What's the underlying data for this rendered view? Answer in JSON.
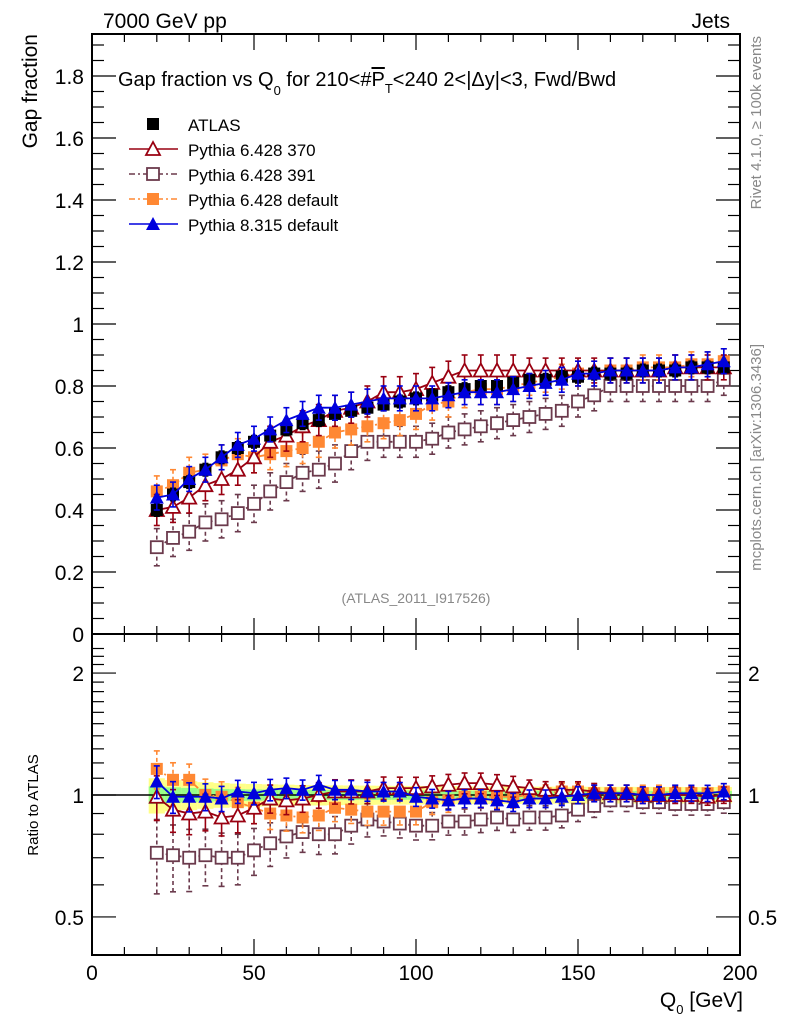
{
  "chart_data": [
    {
      "type": "scatter",
      "panel": "main",
      "title": "Gap fraction vs Q_0 for 210<#P_T<240  2<|Δy|<3, Fwd/Bwd",
      "title_parts": {
        "a": "Gap fraction vs Q",
        "a_sub": "0",
        "b": " for 210<#",
        "b_over": "P",
        "b_sub": "T",
        "c": "<240  2<|Δy|<3, Fwd/Bwd"
      },
      "top_left_label": "7000 GeV pp",
      "top_right_label": "Jets",
      "ylabel": "Gap fraction",
      "xlim": [
        0,
        200
      ],
      "ylim": [
        0,
        1.93
      ],
      "yticks": [
        0,
        0.2,
        0.4,
        0.6,
        0.8,
        1,
        1.2,
        1.4,
        1.6,
        1.8
      ],
      "ytick_labels": [
        "0",
        "0.2",
        "0.4",
        "0.6",
        "0.8",
        "1",
        "1.2",
        "1.4",
        "1.6",
        "1.8"
      ],
      "analysis_label": "(ATLAS_2011_I917526)",
      "legend_position": "top-left",
      "x": [
        20,
        25,
        30,
        35,
        40,
        45,
        50,
        55,
        60,
        65,
        70,
        75,
        80,
        85,
        90,
        95,
        100,
        105,
        110,
        115,
        120,
        125,
        130,
        135,
        140,
        145,
        150,
        155,
        160,
        165,
        170,
        175,
        180,
        185,
        190,
        195
      ],
      "series": [
        {
          "name": "ATLAS",
          "color": "#000000",
          "marker": "filled-square",
          "line": "none",
          "values": [
            0.4,
            0.45,
            0.49,
            0.53,
            0.57,
            0.6,
            0.62,
            0.64,
            0.66,
            0.68,
            0.69,
            0.71,
            0.72,
            0.73,
            0.74,
            0.75,
            0.76,
            0.77,
            0.78,
            0.79,
            0.8,
            0.8,
            0.81,
            0.82,
            0.82,
            0.83,
            0.83,
            0.84,
            0.84,
            0.84,
            0.85,
            0.85,
            0.85,
            0.86,
            0.86,
            0.86
          ],
          "err": [
            0.02,
            0.02,
            0.02,
            0.02,
            0.02,
            0.02,
            0.02,
            0.02,
            0.02,
            0.02,
            0.02,
            0.02,
            0.02,
            0.02,
            0.02,
            0.02,
            0.02,
            0.02,
            0.02,
            0.02,
            0.02,
            0.02,
            0.02,
            0.02,
            0.02,
            0.02,
            0.02,
            0.02,
            0.02,
            0.02,
            0.02,
            0.02,
            0.02,
            0.02,
            0.02,
            0.02
          ]
        },
        {
          "name": "Pythia 6.428 370",
          "color": "#990011",
          "marker": "open-triangle",
          "line": "solid",
          "values": [
            0.4,
            0.41,
            0.44,
            0.48,
            0.5,
            0.53,
            0.57,
            0.62,
            0.64,
            0.67,
            0.69,
            0.72,
            0.73,
            0.75,
            0.78,
            0.78,
            0.79,
            0.81,
            0.83,
            0.85,
            0.85,
            0.85,
            0.85,
            0.85,
            0.85,
            0.85,
            0.85,
            0.85,
            0.85,
            0.85,
            0.85,
            0.85,
            0.86,
            0.86,
            0.86,
            0.86
          ],
          "err": [
            0.05,
            0.05,
            0.05,
            0.05,
            0.05,
            0.05,
            0.05,
            0.05,
            0.05,
            0.05,
            0.05,
            0.05,
            0.05,
            0.05,
            0.05,
            0.05,
            0.05,
            0.05,
            0.05,
            0.05,
            0.05,
            0.05,
            0.05,
            0.04,
            0.04,
            0.04,
            0.04,
            0.04,
            0.04,
            0.04,
            0.04,
            0.04,
            0.04,
            0.04,
            0.04,
            0.04
          ]
        },
        {
          "name": "Pythia 6.428 391",
          "color": "#6b3a4c",
          "marker": "open-square",
          "line": "dash-dot",
          "values": [
            0.28,
            0.31,
            0.33,
            0.36,
            0.37,
            0.39,
            0.42,
            0.46,
            0.49,
            0.52,
            0.53,
            0.55,
            0.59,
            0.62,
            0.62,
            0.62,
            0.62,
            0.63,
            0.65,
            0.66,
            0.67,
            0.68,
            0.69,
            0.7,
            0.71,
            0.72,
            0.75,
            0.77,
            0.8,
            0.8,
            0.8,
            0.8,
            0.8,
            0.8,
            0.8,
            0.82
          ],
          "err": [
            0.06,
            0.06,
            0.06,
            0.06,
            0.06,
            0.06,
            0.06,
            0.06,
            0.06,
            0.06,
            0.06,
            0.06,
            0.06,
            0.06,
            0.05,
            0.05,
            0.05,
            0.05,
            0.05,
            0.05,
            0.05,
            0.05,
            0.05,
            0.05,
            0.05,
            0.05,
            0.05,
            0.05,
            0.05,
            0.05,
            0.05,
            0.05,
            0.05,
            0.05,
            0.05,
            0.05
          ]
        },
        {
          "name": "Pythia 6.428 default",
          "color": "#ff8833",
          "marker": "filled-square",
          "line": "dash-dot",
          "values": [
            0.46,
            0.48,
            0.52,
            0.53,
            0.56,
            0.58,
            0.57,
            0.58,
            0.59,
            0.6,
            0.62,
            0.65,
            0.66,
            0.67,
            0.68,
            0.69,
            0.71,
            0.74,
            0.75,
            0.78,
            0.79,
            0.79,
            0.8,
            0.81,
            0.82,
            0.83,
            0.84,
            0.84,
            0.85,
            0.85,
            0.86,
            0.86,
            0.86,
            0.87,
            0.87,
            0.88
          ],
          "err": [
            0.05,
            0.05,
            0.05,
            0.05,
            0.05,
            0.05,
            0.05,
            0.05,
            0.05,
            0.05,
            0.05,
            0.05,
            0.05,
            0.05,
            0.05,
            0.05,
            0.05,
            0.05,
            0.05,
            0.05,
            0.05,
            0.05,
            0.05,
            0.04,
            0.04,
            0.04,
            0.04,
            0.04,
            0.04,
            0.04,
            0.04,
            0.04,
            0.04,
            0.04,
            0.04,
            0.04
          ]
        },
        {
          "name": "Pythia 8.315 default",
          "color": "#0000dd",
          "marker": "filled-triangle",
          "line": "solid",
          "values": [
            0.44,
            0.45,
            0.5,
            0.53,
            0.57,
            0.61,
            0.63,
            0.66,
            0.69,
            0.71,
            0.73,
            0.73,
            0.74,
            0.75,
            0.76,
            0.76,
            0.76,
            0.76,
            0.77,
            0.78,
            0.78,
            0.78,
            0.79,
            0.8,
            0.81,
            0.82,
            0.84,
            0.84,
            0.85,
            0.85,
            0.85,
            0.85,
            0.86,
            0.86,
            0.87,
            0.88
          ],
          "err": [
            0.04,
            0.04,
            0.04,
            0.04,
            0.04,
            0.04,
            0.04,
            0.04,
            0.04,
            0.04,
            0.04,
            0.04,
            0.04,
            0.04,
            0.04,
            0.04,
            0.04,
            0.04,
            0.04,
            0.04,
            0.04,
            0.04,
            0.04,
            0.04,
            0.04,
            0.04,
            0.04,
            0.04,
            0.04,
            0.04,
            0.04,
            0.04,
            0.04,
            0.04,
            0.04,
            0.04
          ]
        }
      ]
    },
    {
      "type": "scatter",
      "panel": "ratio",
      "ylabel": "Ratio to ATLAS",
      "xlabel": "Q_0 [GeV]",
      "xlabel_parts": {
        "a": "Q",
        "sub": "0",
        "b": " [GeV]"
      },
      "yscale": "log",
      "ylim": [
        0.4,
        2.5
      ],
      "yticks": [
        0.5,
        1,
        2
      ],
      "ytick_labels": [
        "0.5",
        "1",
        "2"
      ],
      "xticks": [
        0,
        50,
        100,
        150,
        200
      ],
      "xtick_labels": [
        "0",
        "50",
        "100",
        "150",
        "200"
      ],
      "band_colors": {
        "inner": "#99ff88",
        "outer": "#ffff88"
      },
      "series": [
        {
          "name": "Pythia 6.428 370",
          "values": [
            0.99,
            0.92,
            0.9,
            0.91,
            0.88,
            0.89,
            0.93,
            0.98,
            0.97,
            0.98,
            1.0,
            1.02,
            1.02,
            1.02,
            1.04,
            1.04,
            1.04,
            1.05,
            1.06,
            1.07,
            1.07,
            1.06,
            1.05,
            1.04,
            1.03,
            1.03,
            1.03,
            1.02,
            1.01,
            1.01,
            1.0,
            1.0,
            1.0,
            1.0,
            0.99,
            1.0
          ]
        },
        {
          "name": "Pythia 6.428 391",
          "values": [
            0.72,
            0.71,
            0.7,
            0.71,
            0.7,
            0.7,
            0.73,
            0.76,
            0.79,
            0.81,
            0.8,
            0.8,
            0.84,
            0.87,
            0.86,
            0.85,
            0.84,
            0.84,
            0.86,
            0.86,
            0.87,
            0.88,
            0.87,
            0.88,
            0.88,
            0.89,
            0.92,
            0.94,
            0.97,
            0.97,
            0.96,
            0.96,
            0.95,
            0.95,
            0.95,
            0.96
          ]
        },
        {
          "name": "Pythia 6.428 default",
          "values": [
            1.16,
            1.09,
            1.09,
            1.0,
            0.99,
            0.96,
            0.93,
            0.9,
            0.89,
            0.88,
            0.89,
            0.93,
            0.92,
            0.91,
            0.91,
            0.91,
            0.91,
            0.96,
            0.97,
            0.99,
            0.99,
            0.99,
            0.99,
            1.0,
            1.01,
            1.02,
            1.02,
            1.01,
            1.01,
            1.01,
            1.01,
            1.01,
            1.01,
            1.01,
            1.01,
            1.02
          ]
        },
        {
          "name": "Pythia 8.315 default",
          "values": [
            1.08,
            0.99,
            0.99,
            0.99,
            0.98,
            1.02,
            1.01,
            1.03,
            1.04,
            1.03,
            1.06,
            1.03,
            1.03,
            1.02,
            1.02,
            1.02,
            0.99,
            0.98,
            0.97,
            0.98,
            0.98,
            0.97,
            0.96,
            0.98,
            0.98,
            0.99,
            1.0,
            1.01,
            1.01,
            1.01,
            1.0,
            1.0,
            1.01,
            1.01,
            1.01,
            1.02
          ]
        }
      ]
    }
  ],
  "side_labels": {
    "rivet": "Rivet 4.1.0, ≥ 100k events",
    "mcplots": "mcplots.cern.ch [arXiv:1306.3436]"
  }
}
